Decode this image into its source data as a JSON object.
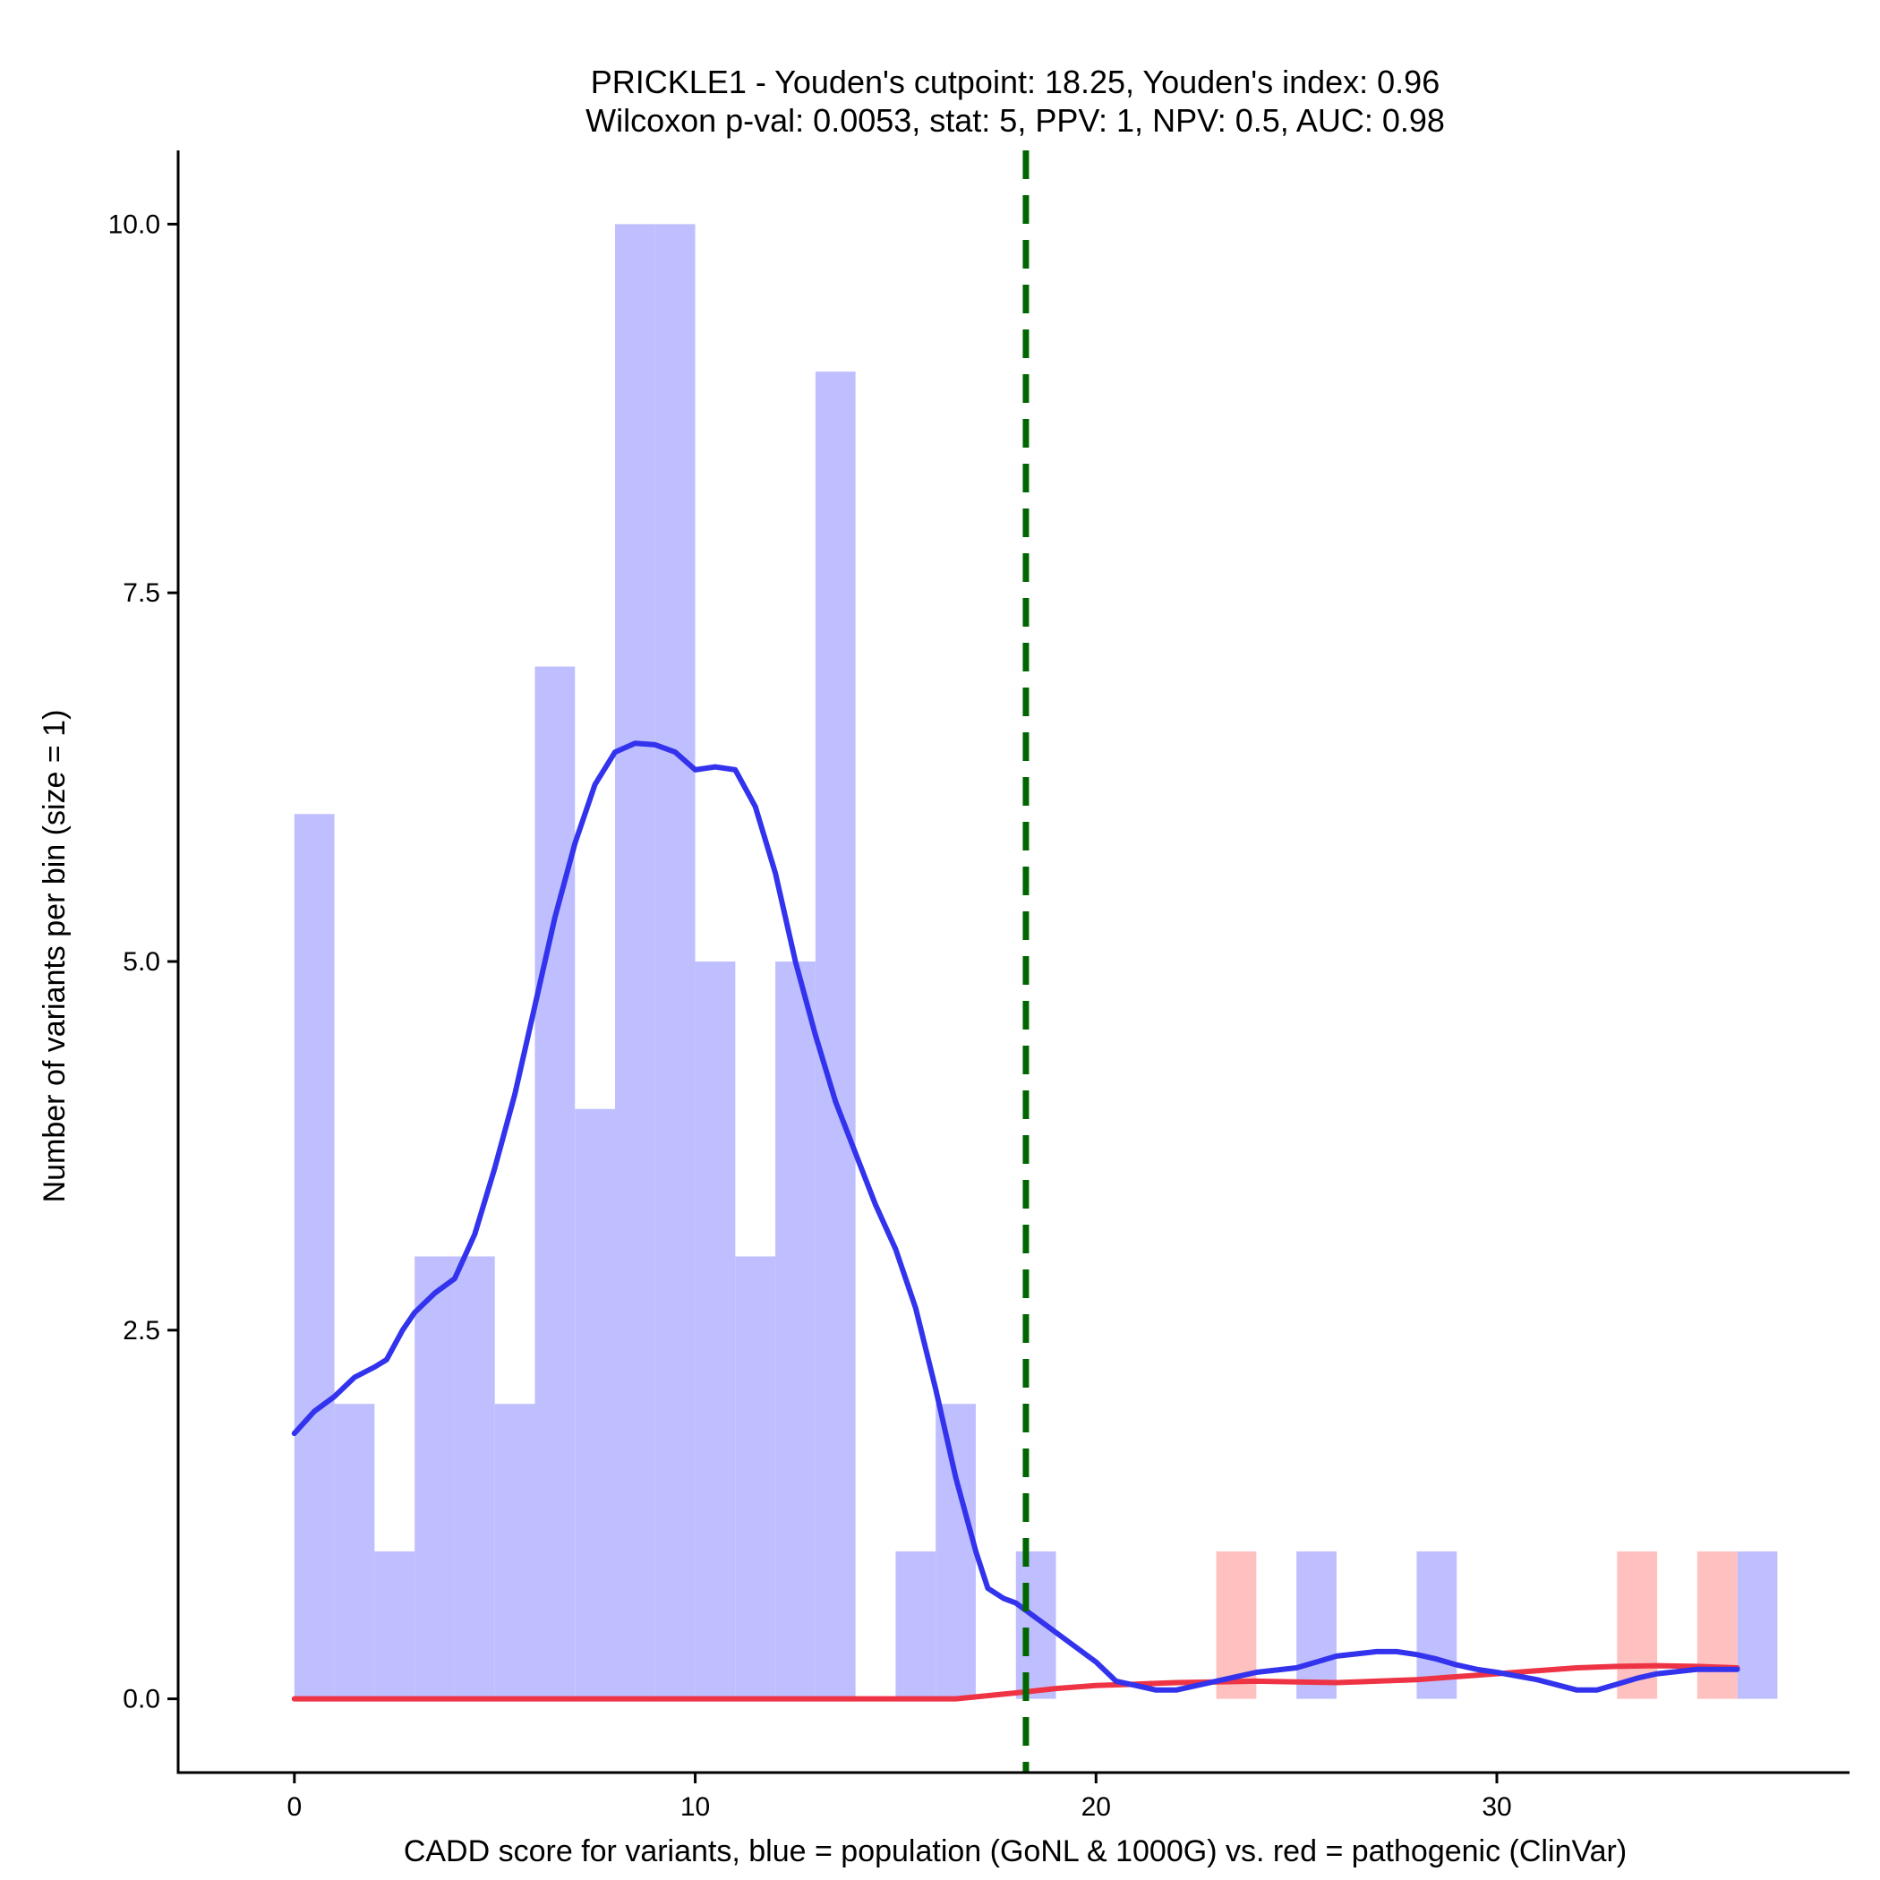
{
  "chart_data": {
    "type": "bar",
    "title": "PRICKLE1 - Youden's cutpoint: 18.25, Youden's index: 0.96",
    "subtitle": "Wilcoxon p-val: 0.0053, stat: 5, PPV: 1, NPV: 0.5, AUC: 0.98",
    "xlabel": "CADD score for variants, blue = population (GoNL & 1000G) vs. red = pathogenic (ClinVar)",
    "ylabel": "Number of variants per bin (size = 1)",
    "xlim": [
      -2.9,
      38.8
    ],
    "ylim": [
      -0.5,
      10.5
    ],
    "x_ticks": [
      0,
      10,
      20,
      30
    ],
    "x_tick_labels": [
      "0",
      "10",
      "20",
      "30"
    ],
    "y_ticks": [
      0,
      2.5,
      5,
      7.5,
      10
    ],
    "y_tick_labels": [
      "0.0",
      "2.5",
      "5.0",
      "7.5",
      "10.0"
    ],
    "grid": false,
    "cutpoint": 18.25,
    "colors": {
      "population_bar": "#bfbfff",
      "pathogenic_bar": "#ffc0c0",
      "population_density": "#3333ee",
      "pathogenic_density": "#ee3344",
      "cutpoint_line": "#006600"
    },
    "series": [
      {
        "bins": [
          {
            "start": 0,
            "end": 1,
            "count": 6
          },
          {
            "start": 1,
            "end": 2,
            "count": 2
          },
          {
            "start": 2,
            "end": 3,
            "count": 1
          },
          {
            "start": 3,
            "end": 4,
            "count": 3
          },
          {
            "start": 4,
            "end": 5,
            "count": 3
          },
          {
            "start": 5,
            "end": 6,
            "count": 2
          },
          {
            "start": 6,
            "end": 7,
            "count": 7
          },
          {
            "start": 7,
            "end": 8,
            "count": 4
          },
          {
            "start": 8,
            "end": 9,
            "count": 10
          },
          {
            "start": 9,
            "end": 10,
            "count": 10
          },
          {
            "start": 10,
            "end": 11,
            "count": 5
          },
          {
            "start": 11,
            "end": 12,
            "count": 3
          },
          {
            "start": 12,
            "end": 13,
            "count": 5
          },
          {
            "start": 13,
            "end": 14,
            "count": 9
          },
          {
            "start": 15,
            "end": 16,
            "count": 1
          },
          {
            "start": 16,
            "end": 17,
            "count": 2
          },
          {
            "start": 18,
            "end": 19,
            "count": 1
          },
          {
            "start": 25,
            "end": 26,
            "count": 1
          },
          {
            "start": 28,
            "end": 29,
            "count": 1
          },
          {
            "start": 36,
            "end": 37,
            "count": 1
          }
        ],
        "density": [
          [
            0,
            1.8
          ],
          [
            0.5,
            1.95
          ],
          [
            1,
            2.05
          ],
          [
            1.5,
            2.18
          ],
          [
            2,
            2.25
          ],
          [
            2.3,
            2.3
          ],
          [
            2.7,
            2.5
          ],
          [
            3,
            2.62
          ],
          [
            3.5,
            2.75
          ],
          [
            4,
            2.85
          ],
          [
            4.5,
            3.15
          ],
          [
            5,
            3.6
          ],
          [
            5.5,
            4.1
          ],
          [
            6,
            4.7
          ],
          [
            6.5,
            5.3
          ],
          [
            7,
            5.8
          ],
          [
            7.5,
            6.2
          ],
          [
            8,
            6.42
          ],
          [
            8.5,
            6.48
          ],
          [
            9,
            6.47
          ],
          [
            9.5,
            6.42
          ],
          [
            10,
            6.3
          ],
          [
            10.5,
            6.32
          ],
          [
            11,
            6.3
          ],
          [
            11.5,
            6.05
          ],
          [
            12,
            5.6
          ],
          [
            12.5,
            5.0
          ],
          [
            13,
            4.5
          ],
          [
            13.5,
            4.05
          ],
          [
            14,
            3.7
          ],
          [
            14.5,
            3.35
          ],
          [
            15,
            3.05
          ],
          [
            15.5,
            2.65
          ],
          [
            16,
            2.1
          ],
          [
            16.5,
            1.5
          ],
          [
            17,
            1.0
          ],
          [
            17.3,
            0.75
          ],
          [
            17.7,
            0.68
          ],
          [
            18,
            0.65
          ],
          [
            18.5,
            0.55
          ],
          [
            19,
            0.45
          ],
          [
            19.5,
            0.35
          ],
          [
            20,
            0.25
          ],
          [
            20.5,
            0.12
          ],
          [
            21,
            0.09
          ],
          [
            21.5,
            0.06
          ],
          [
            22,
            0.06
          ],
          [
            23,
            0.12
          ],
          [
            24,
            0.18
          ],
          [
            25,
            0.21
          ],
          [
            25.5,
            0.25
          ],
          [
            26,
            0.29
          ],
          [
            27,
            0.32
          ],
          [
            27.5,
            0.32
          ],
          [
            28,
            0.3
          ],
          [
            28.5,
            0.27
          ],
          [
            29,
            0.23
          ],
          [
            29.5,
            0.2
          ],
          [
            30,
            0.18
          ],
          [
            31,
            0.13
          ],
          [
            32,
            0.06
          ],
          [
            32.5,
            0.06
          ],
          [
            33,
            0.1
          ],
          [
            33.5,
            0.14
          ],
          [
            34,
            0.17
          ],
          [
            35,
            0.2
          ],
          [
            36,
            0.2
          ]
        ]
      },
      {
        "bins": [
          {
            "start": 23,
            "end": 24,
            "count": 1
          },
          {
            "start": 33,
            "end": 34,
            "count": 1
          },
          {
            "start": 35,
            "end": 36,
            "count": 1
          }
        ],
        "density": [
          [
            0,
            0
          ],
          [
            5,
            0
          ],
          [
            10,
            0
          ],
          [
            15,
            0
          ],
          [
            16.5,
            0
          ],
          [
            18,
            0.04
          ],
          [
            19,
            0.07
          ],
          [
            20,
            0.09
          ],
          [
            21,
            0.1
          ],
          [
            22,
            0.11
          ],
          [
            23,
            0.115
          ],
          [
            24,
            0.12
          ],
          [
            25,
            0.115
          ],
          [
            26,
            0.11
          ],
          [
            27,
            0.12
          ],
          [
            28,
            0.13
          ],
          [
            29,
            0.15
          ],
          [
            30,
            0.17
          ],
          [
            31,
            0.19
          ],
          [
            32,
            0.21
          ],
          [
            33,
            0.22
          ],
          [
            34,
            0.225
          ],
          [
            35,
            0.22
          ],
          [
            36,
            0.21
          ]
        ]
      }
    ]
  }
}
